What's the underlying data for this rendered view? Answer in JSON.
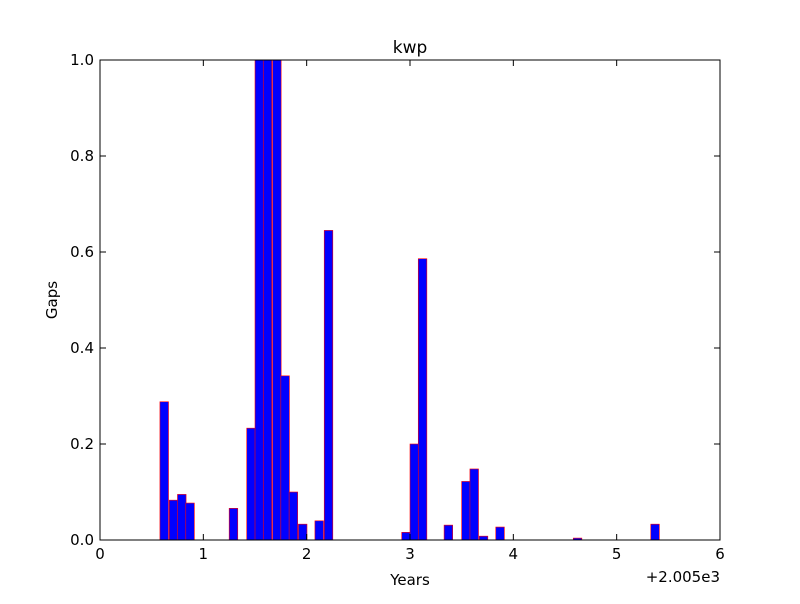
{
  "chart_data": {
    "type": "bar",
    "title": "kwp",
    "xlabel": "Years",
    "ylabel": "Gaps",
    "x_offset_label": "+2.005e3",
    "xlim": [
      0,
      6
    ],
    "ylim": [
      0,
      1.0
    ],
    "xticks": [
      0,
      1,
      2,
      3,
      4,
      5,
      6
    ],
    "yticks": [
      0.0,
      0.2,
      0.4,
      0.6,
      0.8,
      1.0
    ],
    "xtick_labels": [
      "0",
      "1",
      "2",
      "3",
      "4",
      "5",
      "6"
    ],
    "ytick_labels": [
      "0.0",
      "0.2",
      "0.4",
      "0.6",
      "0.8",
      "1.0"
    ],
    "grid": false,
    "bar_color": "#0000ff",
    "bar_edge_color": "#ff0000",
    "bar_width": 0.083,
    "x": [
      0.58,
      0.67,
      0.75,
      0.83,
      1.25,
      1.42,
      1.5,
      1.58,
      1.67,
      1.75,
      1.83,
      1.92,
      2.08,
      2.17,
      2.92,
      3.0,
      3.08,
      3.33,
      3.5,
      3.58,
      3.67,
      3.83,
      4.58,
      5.33
    ],
    "values": [
      0.288,
      0.083,
      0.095,
      0.077,
      0.066,
      0.233,
      1.0,
      1.0,
      1.0,
      0.342,
      0.1,
      0.033,
      0.04,
      0.645,
      0.016,
      0.2,
      0.586,
      0.031,
      0.122,
      0.148,
      0.008,
      0.027,
      0.004,
      0.033
    ]
  }
}
